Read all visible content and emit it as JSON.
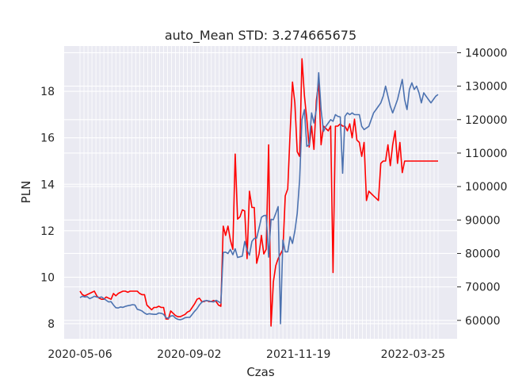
{
  "chart_data": {
    "type": "line",
    "title": "auto_Mean STD: 3.274665675",
    "xlabel": "Czas",
    "ylabel": "PLN",
    "x_tick_labels": [
      "2020-05-06",
      "2020-09-02",
      "2021-11-19",
      "2022-03-25"
    ],
    "ylim_left": [
      7.35,
      19.95
    ],
    "ylim_right": [
      54500,
      142000
    ],
    "left_ticks": [
      8,
      10,
      12,
      14,
      16,
      18
    ],
    "right_ticks": [
      60000,
      70000,
      80000,
      90000,
      100000,
      110000,
      120000,
      130000,
      140000
    ],
    "grid": true,
    "series": [
      {
        "axis": "left",
        "color": "#ff0000",
        "x": [
          0,
          1,
          2,
          3,
          4,
          5,
          6,
          7,
          8,
          9,
          10,
          11,
          12,
          13,
          14,
          15,
          16,
          17,
          18,
          19,
          20,
          21,
          22,
          23,
          24,
          25,
          26,
          27,
          28,
          29,
          30,
          31,
          32,
          33,
          34,
          35,
          36,
          37,
          38,
          39,
          40,
          41,
          42,
          43,
          44,
          45,
          46,
          47,
          48,
          49,
          50,
          51,
          52,
          53,
          54,
          55,
          56,
          57,
          58,
          59,
          60,
          61,
          62,
          63,
          64,
          65,
          66,
          67,
          68,
          69,
          70,
          71,
          72,
          73,
          74,
          75,
          76,
          77,
          78,
          79,
          80,
          81,
          82,
          83,
          84,
          85,
          86,
          87,
          88,
          89,
          90,
          91,
          92,
          93,
          94,
          95,
          96,
          97,
          98,
          99,
          100,
          101,
          102,
          103,
          104,
          105,
          106,
          107,
          108,
          109,
          110,
          111,
          112,
          113,
          114,
          115,
          116,
          117,
          118,
          119,
          120,
          121,
          122,
          123,
          124,
          125,
          126,
          127,
          128,
          129,
          130,
          131,
          132,
          133,
          134,
          135,
          136,
          137,
          138,
          139,
          140,
          141,
          142,
          143,
          144,
          145,
          146,
          147,
          148,
          149,
          150
        ],
        "values": [
          9.4,
          9.25,
          9.2,
          9.25,
          9.3,
          9.35,
          9.4,
          9.2,
          9.1,
          9.05,
          9.05,
          9.15,
          9.1,
          9.05,
          9.3,
          9.2,
          9.3,
          9.35,
          9.4,
          9.4,
          9.35,
          9.4,
          9.4,
          9.4,
          9.4,
          9.3,
          9.25,
          9.25,
          8.8,
          8.7,
          8.6,
          8.7,
          8.7,
          8.75,
          8.7,
          8.7,
          8.2,
          8.2,
          8.55,
          8.45,
          8.35,
          8.3,
          8.3,
          8.35,
          8.4,
          8.5,
          8.55,
          8.7,
          8.85,
          9.05,
          9.1,
          8.95,
          8.95,
          9.0,
          8.95,
          8.95,
          9.0,
          8.95,
          8.8,
          8.75,
          12.2,
          11.8,
          12.2,
          11.6,
          11.2,
          15.3,
          12.5,
          12.6,
          12.9,
          12.85,
          10.8,
          13.7,
          13.0,
          13.0,
          10.6,
          11.0,
          11.8,
          11.0,
          11.2,
          15.7,
          7.9,
          9.8,
          10.5,
          10.8,
          11.0,
          11.2,
          13.5,
          13.8,
          16.2,
          18.4,
          17.5,
          15.4,
          15.2,
          19.4,
          17.8,
          16.8,
          15.6,
          16.5,
          15.5,
          17.6,
          18.4,
          15.7,
          16.5,
          16.4,
          16.3,
          16.5,
          10.2,
          16.5,
          16.5,
          16.6,
          16.5,
          16.5,
          16.3,
          16.6,
          16.0,
          16.8,
          15.9,
          15.8,
          15.2,
          15.8,
          13.3,
          13.7,
          13.6,
          13.5,
          13.4,
          13.3,
          14.9,
          15.0,
          15.0,
          15.7,
          14.8,
          15.7,
          16.3,
          14.9,
          15.8,
          14.5,
          15.0,
          15.0,
          15.0,
          15.0,
          15.0,
          15.0,
          15.0,
          15.0,
          15.0,
          15.0,
          15.0,
          15.0,
          15.0,
          15.0,
          15.0
        ]
      },
      {
        "axis": "right",
        "color": "#4c72b0",
        "x": [
          0,
          1,
          2,
          3,
          4,
          5,
          6,
          7,
          8,
          9,
          10,
          11,
          12,
          13,
          14,
          15,
          16,
          17,
          18,
          19,
          20,
          21,
          22,
          23,
          24,
          25,
          26,
          27,
          28,
          29,
          30,
          31,
          32,
          33,
          34,
          35,
          36,
          37,
          38,
          39,
          40,
          41,
          42,
          43,
          44,
          45,
          46,
          47,
          48,
          49,
          50,
          51,
          52,
          53,
          54,
          55,
          56,
          57,
          58,
          59,
          60,
          61,
          62,
          63,
          64,
          65,
          66,
          67,
          68,
          69,
          70,
          71,
          72,
          73,
          74,
          75,
          76,
          77,
          78,
          79,
          80,
          81,
          82,
          83,
          84,
          85,
          86,
          87,
          88,
          89,
          90,
          91,
          92,
          93,
          94,
          95,
          96,
          97,
          98,
          99,
          100,
          101,
          102,
          103,
          104,
          105,
          106,
          107,
          108,
          109,
          110,
          111,
          112,
          113,
          114,
          115,
          116,
          117,
          118,
          119,
          120,
          121,
          122,
          123,
          124,
          125,
          126,
          127,
          128,
          129,
          130,
          131,
          132,
          133,
          134,
          135,
          136,
          137,
          138,
          139,
          140,
          141,
          142,
          143,
          144,
          145,
          146,
          147,
          148,
          149,
          150
        ],
        "values": [
          66800,
          67200,
          67000,
          67100,
          66500,
          66800,
          67200,
          67000,
          66800,
          67000,
          66500,
          66000,
          65500,
          65600,
          64600,
          63800,
          63700,
          64000,
          63900,
          64200,
          64400,
          64500,
          64700,
          64600,
          63300,
          63100,
          62800,
          62200,
          61800,
          62000,
          61900,
          61800,
          61800,
          62200,
          62100,
          61800,
          60800,
          60600,
          61300,
          61400,
          60700,
          60300,
          60200,
          60400,
          60800,
          60900,
          60900,
          61800,
          62700,
          63500,
          64600,
          65400,
          65800,
          65900,
          65800,
          65600,
          65500,
          66000,
          65600,
          65200,
          80300,
          80400,
          80000,
          81200,
          79600,
          81400,
          78800,
          79000,
          79200,
          83600,
          81000,
          79500,
          83600,
          84500,
          84600,
          87600,
          90800,
          91300,
          91400,
          78900,
          90200,
          90100,
          92000,
          94000,
          59000,
          84000,
          80500,
          80500,
          85000,
          83000,
          86700,
          92000,
          102000,
          120000,
          123000,
          112000,
          112500,
          122000,
          119000,
          123000,
          134000,
          123000,
          116500,
          118000,
          119000,
          120000,
          119500,
          121500,
          121000,
          120800,
          104000,
          121000,
          122000,
          121500,
          122000,
          121500,
          121500,
          121500,
          118000,
          117000,
          117500,
          118000,
          120000,
          122000,
          123000,
          124000,
          125000,
          127000,
          130000,
          127000,
          124000,
          122000,
          124000,
          126000,
          129000,
          132000,
          126000,
          123000,
          129000,
          131000,
          129000,
          130000,
          128000,
          125000,
          128000,
          127000,
          126000,
          125000,
          126000,
          127000,
          127500
        ]
      }
    ]
  }
}
